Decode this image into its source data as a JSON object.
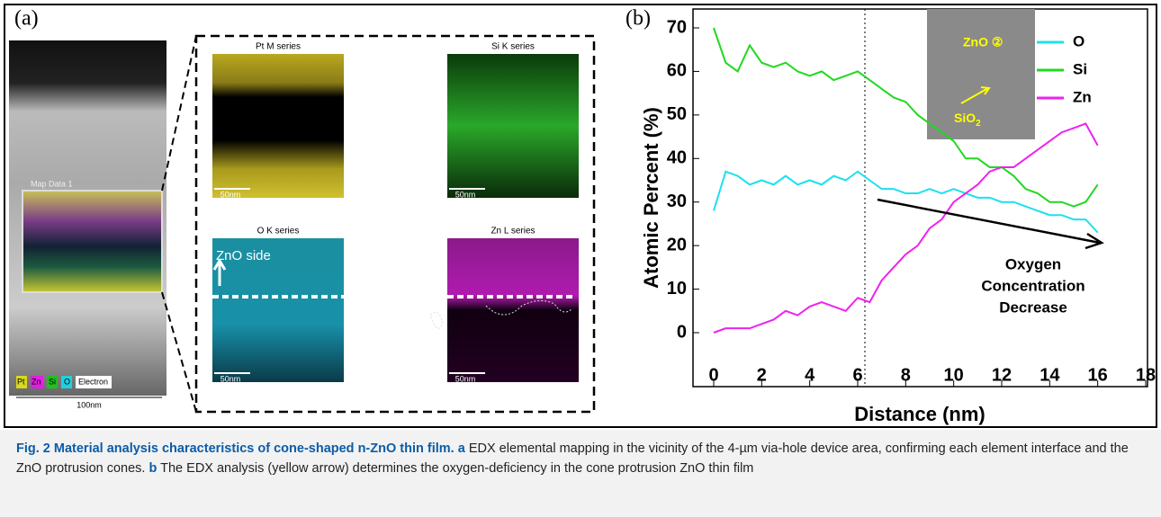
{
  "panel_a": {
    "label": "(a)",
    "map_label": "Map Data 1",
    "scale_main": "100nm",
    "legend": [
      "Pt",
      "Zn",
      "Si",
      "O",
      "Electron"
    ],
    "maps": [
      {
        "title": "Pt M series",
        "scale": "50nm"
      },
      {
        "title": "Si K series",
        "scale": "50nm"
      },
      {
        "title": "O K series",
        "scale": "50nm",
        "note": "ZnO side"
      },
      {
        "title": "Zn L series",
        "scale": "50nm"
      }
    ]
  },
  "chart_data": {
    "type": "line",
    "label": "(b)",
    "x_label": "Distance (nm)",
    "y_label": "Atomic Percent (%)",
    "x": [
      0,
      0.5,
      1,
      1.5,
      2,
      2.5,
      3,
      3.5,
      4,
      4.5,
      5,
      5.5,
      6,
      6.5,
      7,
      7.5,
      8,
      8.5,
      9,
      9.5,
      10,
      10.5,
      11,
      11.5,
      12,
      12.5,
      13,
      13.5,
      14,
      14.5,
      15,
      15.5,
      16
    ],
    "series": [
      {
        "name": "O",
        "color": "#1ee0ee",
        "values": [
          28,
          37,
          36,
          34,
          35,
          34,
          36,
          34,
          35,
          34,
          36,
          35,
          37,
          35,
          33,
          33,
          32,
          32,
          33,
          32,
          33,
          32,
          31,
          31,
          30,
          30,
          29,
          28,
          27,
          27,
          26,
          26,
          23
        ]
      },
      {
        "name": "Si",
        "color": "#22d822",
        "values": [
          70,
          62,
          60,
          66,
          62,
          61,
          62,
          60,
          59,
          60,
          58,
          59,
          60,
          58,
          56,
          54,
          53,
          50,
          48,
          46,
          44,
          40,
          40,
          38,
          38,
          36,
          33,
          32,
          30,
          30,
          29,
          30,
          34
        ]
      },
      {
        "name": "Zn",
        "color": "#ee22ee",
        "values": [
          0,
          1,
          1,
          1,
          2,
          3,
          5,
          4,
          6,
          7,
          6,
          5,
          8,
          7,
          12,
          15,
          18,
          20,
          24,
          26,
          30,
          32,
          34,
          37,
          38,
          38,
          40,
          42,
          44,
          46,
          47,
          48,
          43
        ]
      }
    ],
    "xlim": [
      0,
      18
    ],
    "xticks": [
      0,
      2,
      4,
      6,
      8,
      10,
      12,
      14,
      16,
      18
    ],
    "ylim": [
      0,
      70
    ],
    "yticks": [
      0,
      10,
      20,
      30,
      40,
      50,
      60,
      70
    ],
    "vline": 6.3,
    "annotation": [
      "Oxygen",
      "Concentration",
      "Decrease"
    ],
    "inset": {
      "zno": "ZnO ②",
      "sio2_main": "SiO",
      "sio2_sub": "2"
    }
  },
  "caption": {
    "title": "Fig. 2 Material analysis characteristics of cone-shaped n-ZnO thin film.",
    "a_label": "a",
    "a_text": "EDX elemental mapping in the vicinity of the 4-µm via-hole device area, confirming each element interface and the ZnO protrusion cones.",
    "b_label": "b",
    "b_text": "The EDX analysis (yellow arrow) determines the oxygen-deficiency in the cone protrusion ZnO thin film"
  }
}
